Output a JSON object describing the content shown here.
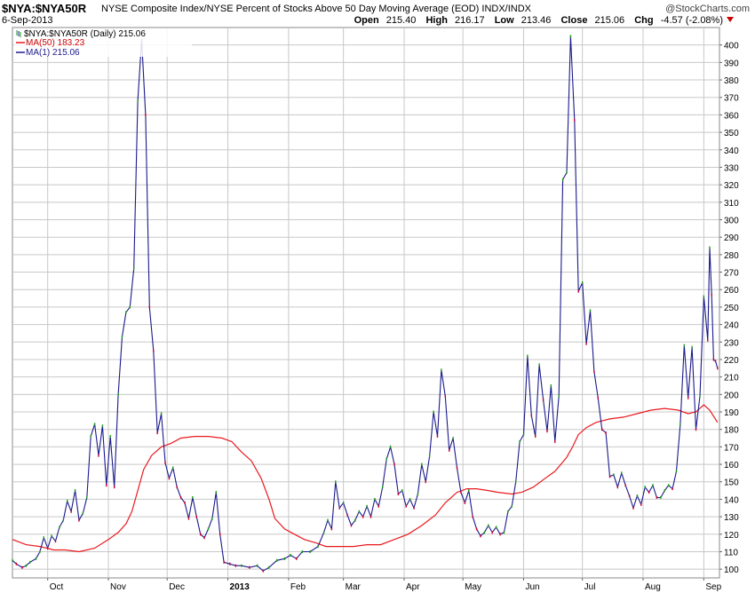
{
  "header": {
    "symbol": "$NYA:$NYA50R",
    "description": "NYSE Composite Index/NYSE Percent of Stocks Above 50 Day Moving Average (EOD) INDX/INDX",
    "brand": "@StockCharts.com",
    "date": "6-Sep-2013",
    "open_label": "Open",
    "open": "215.40",
    "high_label": "High",
    "high": "216.17",
    "low_label": "Low",
    "low": "213.46",
    "close_label": "Close",
    "close": "215.06",
    "chg_label": "Chg",
    "chg": "-4.57 (-2.08%)"
  },
  "legend": {
    "main": "$NYA:$NYA50R (Daily) 215.06",
    "ma50": "MA(50) 183.23",
    "ma1": "MA(1) 215.06"
  },
  "colors": {
    "price": "#1a1a8c",
    "ma50": "#e8191e",
    "grid": "#c8c8c8",
    "up": "#1a9a1a",
    "down": "#cc0033"
  },
  "chart_data": {
    "type": "line",
    "y_range": [
      95,
      410
    ],
    "y_ticks": [
      100,
      110,
      120,
      130,
      140,
      150,
      160,
      170,
      180,
      190,
      200,
      210,
      220,
      230,
      240,
      250,
      260,
      270,
      280,
      290,
      300,
      310,
      320,
      330,
      340,
      350,
      360,
      370,
      380,
      390,
      400
    ],
    "x_range": [
      "2012-09-13",
      "2013-09-09"
    ],
    "x_ticks": [
      {
        "label": "Oct",
        "date": "2012-10-01"
      },
      {
        "label": "Nov",
        "date": "2012-11-01"
      },
      {
        "label": "Dec",
        "date": "2012-12-01"
      },
      {
        "label": "2013",
        "date": "2013-01-01"
      },
      {
        "label": "Feb",
        "date": "2013-02-01"
      },
      {
        "label": "Mar",
        "date": "2013-03-01"
      },
      {
        "label": "Apr",
        "date": "2013-04-01"
      },
      {
        "label": "May",
        "date": "2013-05-01"
      },
      {
        "label": "Jun",
        "date": "2013-06-01"
      },
      {
        "label": "Jul",
        "date": "2013-07-01"
      },
      {
        "label": "Aug",
        "date": "2013-08-01"
      },
      {
        "label": "Sep",
        "date": "2013-09-01"
      }
    ],
    "grid": true,
    "series": [
      {
        "name": "MA(1) 215.06",
        "points": [
          [
            "2012-09-13",
            105
          ],
          [
            "2012-09-15",
            103
          ],
          [
            "2012-09-18",
            101
          ],
          [
            "2012-09-20",
            102
          ],
          [
            "2012-09-22",
            104
          ],
          [
            "2012-09-25",
            106
          ],
          [
            "2012-09-27",
            110
          ],
          [
            "2012-09-29",
            118
          ],
          [
            "2012-10-01",
            112
          ],
          [
            "2012-10-03",
            119
          ],
          [
            "2012-10-05",
            116
          ],
          [
            "2012-10-07",
            124
          ],
          [
            "2012-10-09",
            128
          ],
          [
            "2012-10-11",
            139
          ],
          [
            "2012-10-13",
            133
          ],
          [
            "2012-10-15",
            145
          ],
          [
            "2012-10-17",
            128
          ],
          [
            "2012-10-19",
            132
          ],
          [
            "2012-10-21",
            141
          ],
          [
            "2012-10-23",
            176
          ],
          [
            "2012-10-25",
            183
          ],
          [
            "2012-10-27",
            165
          ],
          [
            "2012-10-29",
            182
          ],
          [
            "2012-10-31",
            148
          ],
          [
            "2012-11-02",
            176
          ],
          [
            "2012-11-04",
            147
          ],
          [
            "2012-11-06",
            200
          ],
          [
            "2012-11-08",
            233
          ],
          [
            "2012-11-10",
            247
          ],
          [
            "2012-11-12",
            250
          ],
          [
            "2012-11-14",
            272
          ],
          [
            "2012-11-16",
            368
          ],
          [
            "2012-11-18",
            403
          ],
          [
            "2012-11-20",
            360
          ],
          [
            "2012-11-22",
            250
          ],
          [
            "2012-11-24",
            225
          ],
          [
            "2012-11-26",
            178
          ],
          [
            "2012-11-28",
            189
          ],
          [
            "2012-11-30",
            161
          ],
          [
            "2012-12-02",
            152
          ],
          [
            "2012-12-04",
            158
          ],
          [
            "2012-12-06",
            147
          ],
          [
            "2012-12-08",
            141
          ],
          [
            "2012-12-10",
            138
          ],
          [
            "2012-12-12",
            129
          ],
          [
            "2012-12-14",
            141
          ],
          [
            "2012-12-16",
            130
          ],
          [
            "2012-12-18",
            120
          ],
          [
            "2012-12-20",
            118
          ],
          [
            "2012-12-22",
            123
          ],
          [
            "2012-12-24",
            129
          ],
          [
            "2012-12-26",
            144
          ],
          [
            "2012-12-28",
            120
          ],
          [
            "2012-12-30",
            104
          ],
          [
            "2013-01-02",
            103
          ],
          [
            "2013-01-05",
            102
          ],
          [
            "2013-01-08",
            102
          ],
          [
            "2013-01-12",
            101
          ],
          [
            "2013-01-16",
            102
          ],
          [
            "2013-01-19",
            99
          ],
          [
            "2013-01-22",
            101
          ],
          [
            "2013-01-26",
            105
          ],
          [
            "2013-01-30",
            106
          ],
          [
            "2013-02-02",
            108
          ],
          [
            "2013-02-05",
            106
          ],
          [
            "2013-02-08",
            110
          ],
          [
            "2013-02-12",
            110
          ],
          [
            "2013-02-16",
            113
          ],
          [
            "2013-02-19",
            121
          ],
          [
            "2013-02-21",
            128
          ],
          [
            "2013-02-23",
            123
          ],
          [
            "2013-02-25",
            150
          ],
          [
            "2013-02-27",
            135
          ],
          [
            "2013-03-01",
            138
          ],
          [
            "2013-03-03",
            131
          ],
          [
            "2013-03-05",
            125
          ],
          [
            "2013-03-07",
            128
          ],
          [
            "2013-03-09",
            133
          ],
          [
            "2013-03-11",
            130
          ],
          [
            "2013-03-13",
            136
          ],
          [
            "2013-03-15",
            130
          ],
          [
            "2013-03-17",
            140
          ],
          [
            "2013-03-19",
            136
          ],
          [
            "2013-03-21",
            147
          ],
          [
            "2013-03-23",
            163
          ],
          [
            "2013-03-25",
            170
          ],
          [
            "2013-03-27",
            160
          ],
          [
            "2013-03-29",
            143
          ],
          [
            "2013-03-31",
            145
          ],
          [
            "2013-04-02",
            136
          ],
          [
            "2013-04-04",
            140
          ],
          [
            "2013-04-06",
            135
          ],
          [
            "2013-04-08",
            143
          ],
          [
            "2013-04-10",
            160
          ],
          [
            "2013-04-12",
            150
          ],
          [
            "2013-04-14",
            165
          ],
          [
            "2013-04-16",
            190
          ],
          [
            "2013-04-18",
            176
          ],
          [
            "2013-04-20",
            214
          ],
          [
            "2013-04-22",
            199
          ],
          [
            "2013-04-24",
            168
          ],
          [
            "2013-04-26",
            175
          ],
          [
            "2013-04-28",
            158
          ],
          [
            "2013-04-30",
            144
          ],
          [
            "2013-05-02",
            138
          ],
          [
            "2013-05-04",
            145
          ],
          [
            "2013-05-06",
            130
          ],
          [
            "2013-05-08",
            123
          ],
          [
            "2013-05-10",
            119
          ],
          [
            "2013-05-12",
            121
          ],
          [
            "2013-05-14",
            125
          ],
          [
            "2013-05-16",
            121
          ],
          [
            "2013-05-18",
            124
          ],
          [
            "2013-05-20",
            120
          ],
          [
            "2013-05-22",
            121
          ],
          [
            "2013-05-24",
            133
          ],
          [
            "2013-05-26",
            136
          ],
          [
            "2013-05-28",
            150
          ],
          [
            "2013-05-30",
            173
          ],
          [
            "2013-06-01",
            177
          ],
          [
            "2013-06-03",
            222
          ],
          [
            "2013-06-05",
            188
          ],
          [
            "2013-06-07",
            176
          ],
          [
            "2013-06-09",
            217
          ],
          [
            "2013-06-11",
            197
          ],
          [
            "2013-06-13",
            179
          ],
          [
            "2013-06-15",
            205
          ],
          [
            "2013-06-17",
            173
          ],
          [
            "2013-06-19",
            199
          ],
          [
            "2013-06-21",
            323
          ],
          [
            "2013-06-23",
            327
          ],
          [
            "2013-06-25",
            405
          ],
          [
            "2013-06-27",
            357
          ],
          [
            "2013-06-29",
            259
          ],
          [
            "2013-07-01",
            264
          ],
          [
            "2013-07-03",
            229
          ],
          [
            "2013-07-05",
            248
          ],
          [
            "2013-07-07",
            213
          ],
          [
            "2013-07-09",
            198
          ],
          [
            "2013-07-11",
            180
          ],
          [
            "2013-07-13",
            178
          ],
          [
            "2013-07-15",
            153
          ],
          [
            "2013-07-17",
            154
          ],
          [
            "2013-07-19",
            147
          ],
          [
            "2013-07-21",
            155
          ],
          [
            "2013-07-23",
            148
          ],
          [
            "2013-07-25",
            142
          ],
          [
            "2013-07-27",
            135
          ],
          [
            "2013-07-29",
            142
          ],
          [
            "2013-07-31",
            137
          ],
          [
            "2013-08-02",
            147
          ],
          [
            "2013-08-04",
            144
          ],
          [
            "2013-08-06",
            148
          ],
          [
            "2013-08-08",
            141
          ],
          [
            "2013-08-10",
            141
          ],
          [
            "2013-08-12",
            145
          ],
          [
            "2013-08-14",
            148
          ],
          [
            "2013-08-16",
            146
          ],
          [
            "2013-08-18",
            156
          ],
          [
            "2013-08-20",
            183
          ],
          [
            "2013-08-22",
            228
          ],
          [
            "2013-08-24",
            198
          ],
          [
            "2013-08-26",
            227
          ],
          [
            "2013-08-28",
            180
          ],
          [
            "2013-08-30",
            199
          ],
          [
            "2013-09-01",
            256
          ],
          [
            "2013-09-03",
            231
          ],
          [
            "2013-09-04",
            284
          ],
          [
            "2013-09-05",
            257
          ],
          [
            "2013-09-06",
            220
          ],
          [
            "2013-09-07",
            219
          ],
          [
            "2013-09-08",
            215
          ]
        ]
      },
      {
        "name": "MA(50) 183.23",
        "points": [
          [
            "2012-09-13",
            117
          ],
          [
            "2012-09-20",
            114
          ],
          [
            "2012-09-27",
            113
          ],
          [
            "2012-10-04",
            111
          ],
          [
            "2012-10-10",
            111
          ],
          [
            "2012-10-17",
            110
          ],
          [
            "2012-10-25",
            112
          ],
          [
            "2012-11-01",
            117
          ],
          [
            "2012-11-06",
            121
          ],
          [
            "2012-11-10",
            126
          ],
          [
            "2012-11-13",
            133
          ],
          [
            "2012-11-16",
            145
          ],
          [
            "2012-11-19",
            157
          ],
          [
            "2012-11-23",
            165
          ],
          [
            "2012-11-28",
            170
          ],
          [
            "2012-12-03",
            172
          ],
          [
            "2012-12-08",
            175
          ],
          [
            "2012-12-15",
            176
          ],
          [
            "2012-12-22",
            176
          ],
          [
            "2012-12-29",
            175
          ],
          [
            "2013-01-03",
            173
          ],
          [
            "2013-01-08",
            167
          ],
          [
            "2013-01-13",
            162
          ],
          [
            "2013-01-18",
            152
          ],
          [
            "2013-01-22",
            140
          ],
          [
            "2013-01-25",
            129
          ],
          [
            "2013-01-30",
            123
          ],
          [
            "2013-02-04",
            120
          ],
          [
            "2013-02-09",
            117
          ],
          [
            "2013-02-15",
            115
          ],
          [
            "2013-02-20",
            113
          ],
          [
            "2013-02-27",
            113
          ],
          [
            "2013-03-06",
            113
          ],
          [
            "2013-03-13",
            114
          ],
          [
            "2013-03-20",
            114
          ],
          [
            "2013-03-27",
            117
          ],
          [
            "2013-04-03",
            120
          ],
          [
            "2013-04-10",
            125
          ],
          [
            "2013-04-17",
            131
          ],
          [
            "2013-04-22",
            138
          ],
          [
            "2013-04-28",
            144
          ],
          [
            "2013-05-03",
            146
          ],
          [
            "2013-05-08",
            146
          ],
          [
            "2013-05-14",
            145
          ],
          [
            "2013-05-19",
            144
          ],
          [
            "2013-05-26",
            143
          ],
          [
            "2013-05-31",
            144
          ],
          [
            "2013-06-06",
            147
          ],
          [
            "2013-06-12",
            152
          ],
          [
            "2013-06-17",
            156
          ],
          [
            "2013-06-20",
            160
          ],
          [
            "2013-06-23",
            164
          ],
          [
            "2013-06-26",
            170
          ],
          [
            "2013-06-29",
            177
          ],
          [
            "2013-07-03",
            181
          ],
          [
            "2013-07-08",
            184
          ],
          [
            "2013-07-15",
            186
          ],
          [
            "2013-07-22",
            187
          ],
          [
            "2013-07-29",
            189
          ],
          [
            "2013-08-05",
            191
          ],
          [
            "2013-08-12",
            192
          ],
          [
            "2013-08-19",
            191
          ],
          [
            "2013-08-24",
            189
          ],
          [
            "2013-08-28",
            190
          ],
          [
            "2013-09-01",
            194
          ],
          [
            "2013-09-04",
            191
          ],
          [
            "2013-09-08",
            184
          ]
        ]
      }
    ]
  }
}
